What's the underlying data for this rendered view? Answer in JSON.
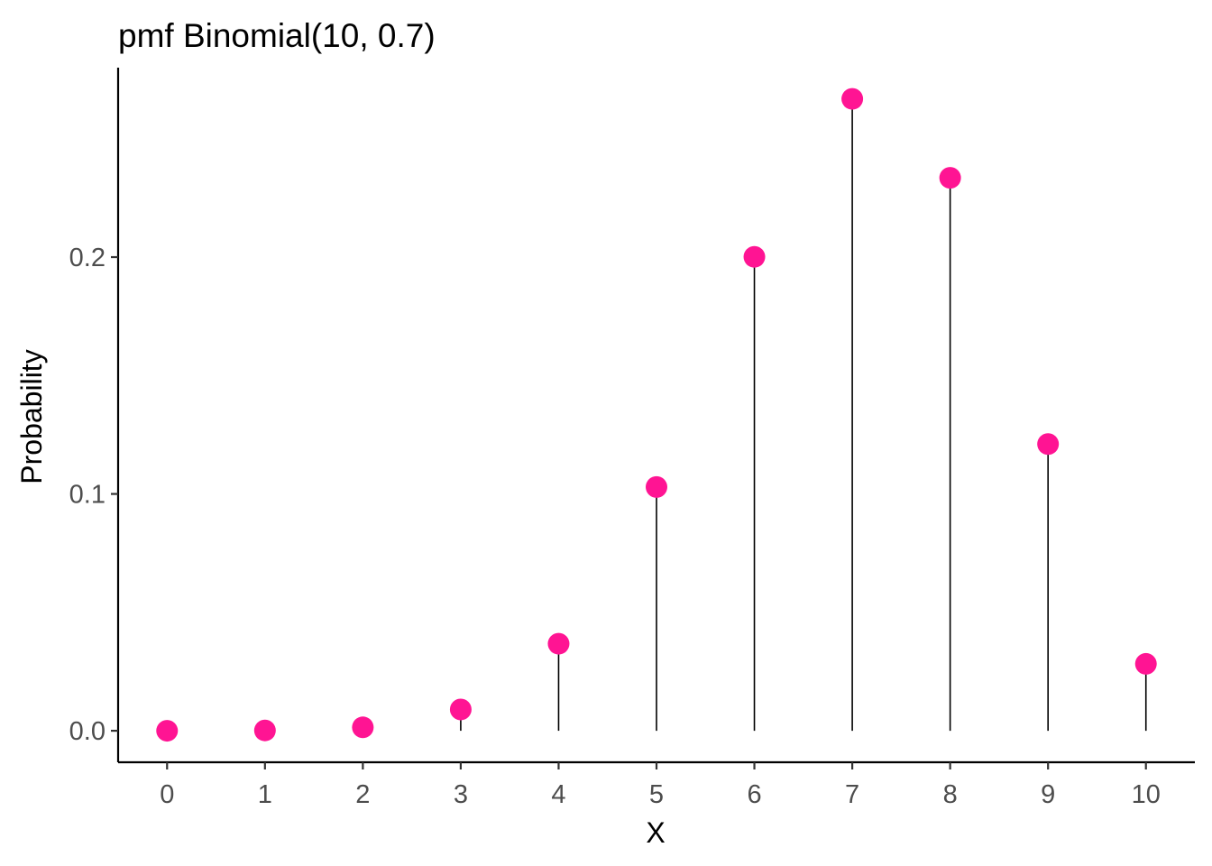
{
  "chart_data": {
    "type": "scatter",
    "title": "pmf Binomial(10, 0.7)",
    "xlabel": "X",
    "ylabel": "Probability",
    "x": [
      0,
      1,
      2,
      3,
      4,
      5,
      6,
      7,
      8,
      9,
      10
    ],
    "y": [
      5.9e-06,
      0.0001378,
      0.0014467,
      0.0090017,
      0.0367569,
      0.1029193,
      0.2001209,
      0.2668279,
      0.2334744,
      0.1210608,
      0.0282475
    ],
    "x_ticks": [
      "0",
      "1",
      "2",
      "3",
      "4",
      "5",
      "6",
      "7",
      "8",
      "9",
      "10"
    ],
    "y_ticks": [
      {
        "value": 0.0,
        "label": "0.0"
      },
      {
        "value": 0.1,
        "label": "0.1"
      },
      {
        "value": 0.2,
        "label": "0.2"
      }
    ],
    "xlim": [
      -0.5,
      10.5
    ],
    "ylim": [
      -0.0133,
      0.28
    ],
    "grid": false,
    "stems": true,
    "point_color": "#FF1493",
    "stem_color": "#000000"
  }
}
